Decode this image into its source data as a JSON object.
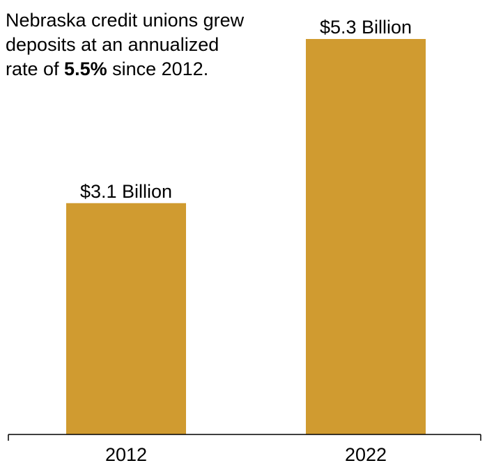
{
  "annotation": {
    "text_before": "Nebraska credit unions grew deposits at an annualized rate of ",
    "highlight": "5.5%",
    "text_after": " since 2012."
  },
  "chart_data": {
    "type": "bar",
    "categories": [
      "2012",
      "2022"
    ],
    "values": [
      3.1,
      5.3
    ],
    "data_labels": [
      "$3.1 Billion",
      "$5.3 Billion"
    ],
    "unit": "Billion USD",
    "title": "",
    "xlabel": "",
    "ylabel": "",
    "ylim": [
      0,
      5.3
    ],
    "grid": false,
    "legend": "none",
    "bar_color": "#d09b30",
    "axis_color": "#000000"
  }
}
